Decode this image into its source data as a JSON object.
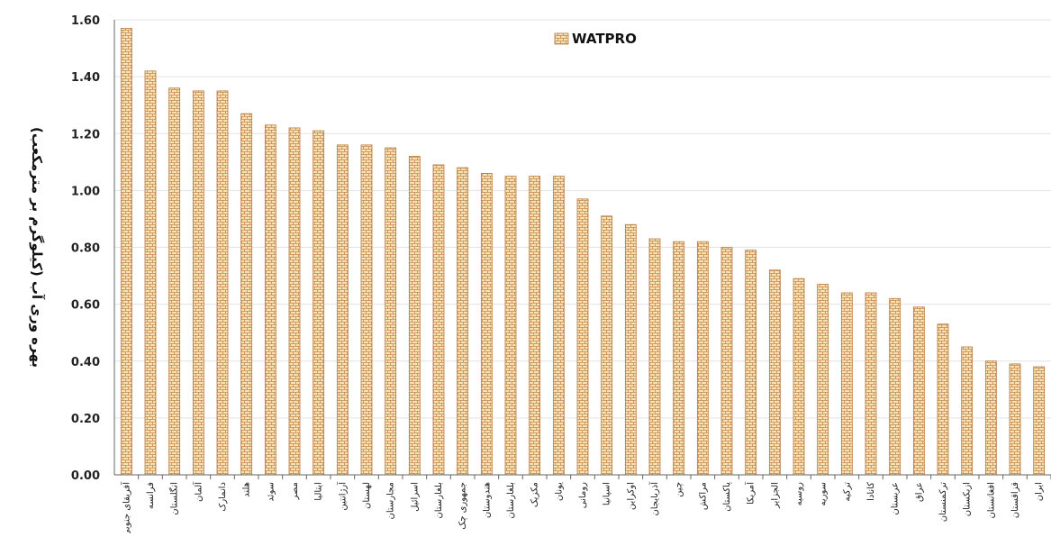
{
  "chart_data": {
    "type": "bar",
    "ylabel": "بهره وری آب (کیلوگرم بر مترمکعب)",
    "xlabel": "",
    "ylim": [
      0,
      1.6
    ],
    "yticks": [
      "0.00",
      "0.20",
      "0.40",
      "0.60",
      "0.80",
      "1.00",
      "1.20",
      "1.40",
      "1.60"
    ],
    "grid": true,
    "legend_position": "top-center",
    "colors": {
      "bar_fill": "#f7e2b7",
      "bar_pattern_line": "#c8884a",
      "bar_edge": "#b9783a",
      "grid": "#e3e3e3",
      "axis": "#666666"
    },
    "categories": [
      "آفریقای جنوبی",
      "فرانسه",
      "انگلستان",
      "آلمان",
      "دانمارک",
      "هلند",
      "سوئد",
      "مصر",
      "ایتالیا",
      "آرژانتین",
      "لهستان",
      "مجارستان",
      "اسرائیل",
      "بلغارستان",
      "جمهوری چک",
      "هندوستان",
      "بلغارستان",
      "مکزیک",
      "یونان",
      "رومانی",
      "اسپانیا",
      "اوکراین",
      "آذربایجان",
      "چین",
      "مراکش",
      "پاکستان",
      "آمریکا",
      "الجزایر",
      "روسیه",
      "سوریه",
      "ترکیه",
      "کانادا",
      "عربستان",
      "عراق",
      "ترکمنستان",
      "ازبکستان",
      "افغانستان",
      "قزاقستان",
      "ایران"
    ],
    "series": [
      {
        "name": "WATPRO",
        "values": [
          1.57,
          1.42,
          1.36,
          1.35,
          1.35,
          1.27,
          1.23,
          1.22,
          1.21,
          1.16,
          1.16,
          1.15,
          1.12,
          1.09,
          1.08,
          1.06,
          1.05,
          1.05,
          1.05,
          0.97,
          0.91,
          0.88,
          0.83,
          0.82,
          0.82,
          0.8,
          0.79,
          0.72,
          0.69,
          0.67,
          0.64,
          0.64,
          0.62,
          0.59,
          0.53,
          0.45,
          0.4,
          0.39,
          0.38
        ]
      }
    ]
  }
}
